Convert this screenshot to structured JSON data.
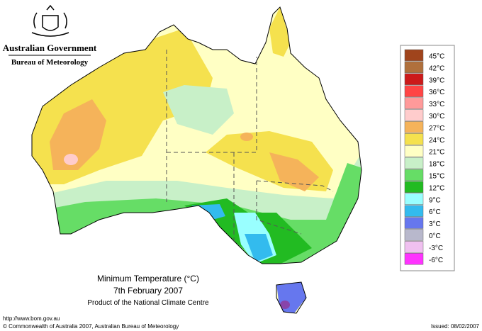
{
  "header": {
    "government": "Australian Government",
    "agency": "Bureau of Meteorology"
  },
  "map": {
    "title": "Minimum Temperature (°C)",
    "date": "7th February 2007",
    "product": "Product of the National Climate Centre"
  },
  "legend": {
    "items": [
      {
        "label": "45°C",
        "color": "#a0441c"
      },
      {
        "label": "42°C",
        "color": "#b0703c"
      },
      {
        "label": "39°C",
        "color": "#cc1a1a"
      },
      {
        "label": "36°C",
        "color": "#ff4545"
      },
      {
        "label": "33°C",
        "color": "#ff9a9a"
      },
      {
        "label": "30°C",
        "color": "#ffcccc"
      },
      {
        "label": "27°C",
        "color": "#f5b35a"
      },
      {
        "label": "24°C",
        "color": "#f5e14e"
      },
      {
        "label": "21°C",
        "color": "#ffffc4"
      },
      {
        "label": "18°C",
        "color": "#c8f0c8"
      },
      {
        "label": "15°C",
        "color": "#66dd66"
      },
      {
        "label": "12°C",
        "color": "#22bb22"
      },
      {
        "label": "9°C",
        "color": "#99ffff"
      },
      {
        "label": "6°C",
        "color": "#33bbee"
      },
      {
        "label": "3°C",
        "color": "#6677ee"
      },
      {
        "label": "0°C",
        "color": "#b8b8cc"
      },
      {
        "label": "-3°C",
        "color": "#f0c0f0"
      },
      {
        "label": "-6°C",
        "color": "#ff33ff"
      }
    ]
  },
  "footer": {
    "url": "http://www.bom.gov.au",
    "copyright": "© Commonwealth of Australia 2007, Australian Bureau of Meteorology",
    "issued": "Issued: 08/02/2007"
  }
}
